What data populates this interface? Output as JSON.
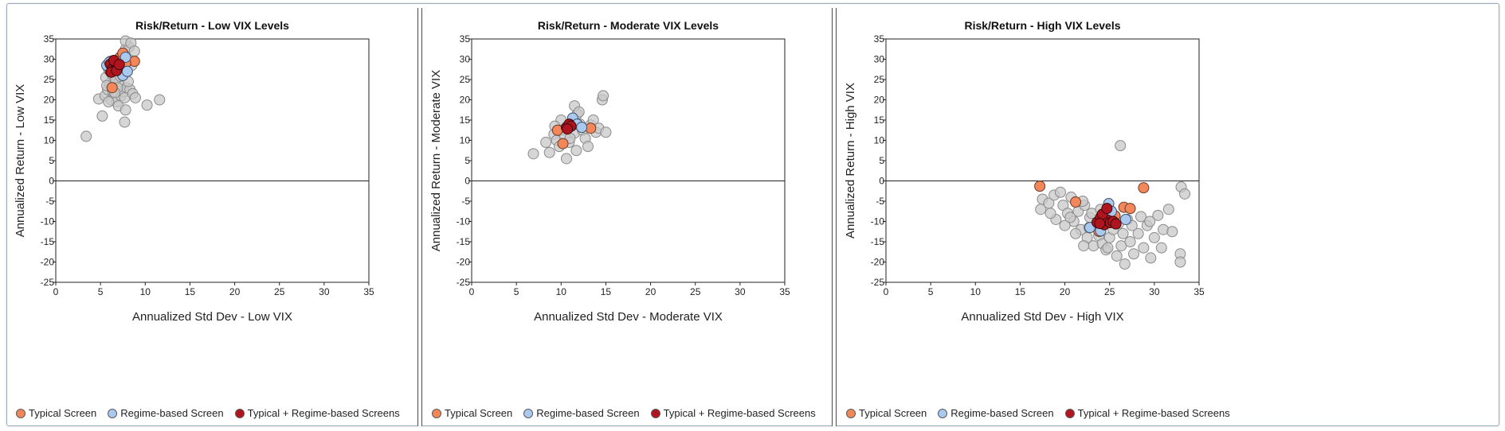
{
  "colors": {
    "background_points": "#c8c8c8",
    "typical": "#f2875a",
    "regime": "#a9c9ef",
    "combined": "#b0141f"
  },
  "chart_data": [
    {
      "type": "scatter",
      "title": "Risk/Return - Low VIX Levels",
      "xlabel": "Annualized Std Dev - Low VIX",
      "ylabel": "Annualized Return - Low VIX",
      "xlim": [
        0,
        35
      ],
      "ylim": [
        -25,
        35
      ],
      "xticks": [
        0,
        5,
        10,
        15,
        20,
        25,
        30,
        35
      ],
      "yticks": [
        35,
        30,
        25,
        20,
        15,
        10,
        5,
        0,
        -5,
        -10,
        -15,
        -20,
        -25
      ],
      "grid": false,
      "legend": [
        "Typical Screen",
        "Regime-based Screen",
        "Typical + Regime-based Screens"
      ],
      "series": [
        {
          "role": "background",
          "points": [
            [
              3.4,
              11.0
            ],
            [
              5.2,
              16.0
            ],
            [
              4.8,
              20.2
            ],
            [
              5.5,
              21.0
            ],
            [
              5.8,
              22.5
            ],
            [
              6.0,
              24.0
            ],
            [
              5.6,
              25.5
            ],
            [
              6.3,
              26.2
            ],
            [
              5.9,
              27.5
            ],
            [
              6.5,
              28.0
            ],
            [
              7.0,
              29.0
            ],
            [
              7.2,
              30.5
            ],
            [
              7.5,
              31.0
            ],
            [
              7.8,
              32.5
            ],
            [
              8.2,
              33.0
            ],
            [
              7.8,
              34.5
            ],
            [
              8.4,
              34.0
            ],
            [
              8.8,
              32.0
            ],
            [
              6.2,
              20.0
            ],
            [
              6.8,
              19.5
            ],
            [
              7.3,
              21.0
            ],
            [
              7.6,
              22.0
            ],
            [
              7.9,
              23.0
            ],
            [
              8.3,
              22.5
            ],
            [
              7.1,
              24.5
            ],
            [
              6.7,
              25.0
            ],
            [
              7.4,
              26.5
            ],
            [
              8.0,
              27.0
            ],
            [
              8.5,
              28.5
            ],
            [
              6.1,
              29.5
            ],
            [
              5.7,
              23.5
            ],
            [
              6.9,
              23.0
            ],
            [
              7.7,
              20.5
            ],
            [
              8.6,
              21.5
            ],
            [
              7.0,
              18.5
            ],
            [
              7.7,
              14.5
            ],
            [
              7.8,
              17.5
            ],
            [
              8.9,
              20.5
            ],
            [
              10.2,
              18.7
            ],
            [
              11.6,
              20.0
            ],
            [
              6.4,
              22.0
            ],
            [
              5.9,
              19.5
            ],
            [
              6.6,
              21.8
            ],
            [
              7.2,
              25.8
            ],
            [
              8.1,
              24.5
            ]
          ]
        },
        {
          "name": "Typical Screen",
          "points": [
            [
              6.3,
              23.0
            ],
            [
              8.8,
              29.5
            ],
            [
              7.2,
              30.5
            ],
            [
              6.9,
              28.5
            ],
            [
              7.8,
              29.0
            ],
            [
              6.1,
              27.0
            ],
            [
              7.5,
              31.5
            ]
          ]
        },
        {
          "name": "Regime-based Screen",
          "points": [
            [
              5.7,
              28.5
            ],
            [
              6.0,
              29.3
            ],
            [
              7.0,
              27.5
            ],
            [
              7.5,
              26.0
            ],
            [
              8.0,
              27.0
            ],
            [
              7.8,
              30.5
            ],
            [
              6.5,
              27.8
            ]
          ]
        },
        {
          "name": "Typical + Regime-based Screens",
          "points": [
            [
              6.1,
              28.8
            ],
            [
              6.3,
              27.5
            ],
            [
              6.7,
              29.0
            ],
            [
              6.9,
              28.0
            ],
            [
              6.2,
              26.8
            ],
            [
              6.5,
              29.7
            ],
            [
              6.8,
              27.2
            ],
            [
              7.1,
              28.7
            ]
          ]
        }
      ]
    },
    {
      "type": "scatter",
      "title": "Risk/Return - Moderate VIX Levels",
      "xlabel": "Annualized Std Dev - Moderate VIX",
      "ylabel": "Annualized Return - Moderate VIX",
      "xlim": [
        0,
        35
      ],
      "ylim": [
        -25,
        35
      ],
      "xticks": [
        0,
        5,
        10,
        15,
        20,
        25,
        30,
        35
      ],
      "yticks": [
        35,
        30,
        25,
        20,
        15,
        10,
        5,
        0,
        -5,
        -10,
        -15,
        -20,
        -25
      ],
      "grid": false,
      "legend": [
        "Typical Screen",
        "Regime-based Screen",
        "Typical + Regime-based Screens"
      ],
      "series": [
        {
          "role": "background",
          "points": [
            [
              6.9,
              6.7
            ],
            [
              8.3,
              9.5
            ],
            [
              8.7,
              7.0
            ],
            [
              9.2,
              11.5
            ],
            [
              9.5,
              10.0
            ],
            [
              9.8,
              8.5
            ],
            [
              10.1,
              12.5
            ],
            [
              10.4,
              11.0
            ],
            [
              10.6,
              5.5
            ],
            [
              10.9,
              9.5
            ],
            [
              11.2,
              13.5
            ],
            [
              11.5,
              11.8
            ],
            [
              11.8,
              16.5
            ],
            [
              12.1,
              14.0
            ],
            [
              12.4,
              12.5
            ],
            [
              12.7,
              10.5
            ],
            [
              13.0,
              8.5
            ],
            [
              13.3,
              13.8
            ],
            [
              13.6,
              15.0
            ],
            [
              13.9,
              12.0
            ],
            [
              14.2,
              13.0
            ],
            [
              14.6,
              20.0
            ],
            [
              14.7,
              21.0
            ],
            [
              15.0,
              12.0
            ],
            [
              11.5,
              18.5
            ],
            [
              12.0,
              17.0
            ],
            [
              11.0,
              10.5
            ],
            [
              10.0,
              15.0
            ],
            [
              9.3,
              13.5
            ],
            [
              11.7,
              7.5
            ]
          ]
        },
        {
          "name": "Typical Screen",
          "points": [
            [
              10.2,
              9.2
            ],
            [
              9.6,
              12.5
            ],
            [
              13.3,
              13.0
            ]
          ]
        },
        {
          "name": "Regime-based Screen",
          "points": [
            [
              11.3,
              15.5
            ],
            [
              11.8,
              14.0
            ],
            [
              10.8,
              13.0
            ],
            [
              12.3,
              13.2
            ]
          ]
        },
        {
          "name": "Typical + Regime-based Screens",
          "points": [
            [
              10.6,
              13.2
            ],
            [
              10.9,
              14.0
            ],
            [
              11.1,
              13.5
            ],
            [
              10.7,
              12.8
            ]
          ]
        }
      ]
    },
    {
      "type": "scatter",
      "title": "Risk/Return - High VIX Levels",
      "xlabel": "Annualized Std Dev - High VIX",
      "ylabel": "Annualized Return - High VIX",
      "xlim": [
        0,
        35
      ],
      "ylim": [
        -25,
        35
      ],
      "xticks": [
        0,
        5,
        10,
        15,
        20,
        25,
        30,
        35
      ],
      "yticks": [
        35,
        30,
        25,
        20,
        15,
        10,
        5,
        0,
        -5,
        -10,
        -15,
        -20,
        -25
      ],
      "grid": false,
      "legend": [
        "Typical Screen",
        "Regime-based Screen",
        "Typical + Regime-based Screens"
      ],
      "series": [
        {
          "role": "background",
          "points": [
            [
              26.2,
              8.7
            ],
            [
              17.5,
              -4.5
            ],
            [
              17.3,
              -7.0
            ],
            [
              18.2,
              -5.5
            ],
            [
              18.8,
              -3.5
            ],
            [
              19.5,
              -2.8
            ],
            [
              19.8,
              -6.0
            ],
            [
              20.3,
              -8.0
            ],
            [
              20.7,
              -4.0
            ],
            [
              21.0,
              -10.0
            ],
            [
              21.5,
              -7.5
            ],
            [
              21.8,
              -12.0
            ],
            [
              22.2,
              -6.0
            ],
            [
              22.5,
              -14.0
            ],
            [
              22.8,
              -9.0
            ],
            [
              23.2,
              -16.0
            ],
            [
              23.5,
              -11.0
            ],
            [
              23.8,
              -13.5
            ],
            [
              24.2,
              -15.5
            ],
            [
              24.6,
              -17.0
            ],
            [
              25.0,
              -14.0
            ],
            [
              25.4,
              -12.0
            ],
            [
              25.8,
              -18.5
            ],
            [
              26.3,
              -16.0
            ],
            [
              26.7,
              -20.5
            ],
            [
              27.3,
              -15.0
            ],
            [
              27.7,
              -18.0
            ],
            [
              28.2,
              -13.0
            ],
            [
              28.8,
              -16.5
            ],
            [
              29.2,
              -11.0
            ],
            [
              29.6,
              -19.0
            ],
            [
              30.0,
              -14.0
            ],
            [
              30.4,
              -8.5
            ],
            [
              31.0,
              -12.0
            ],
            [
              31.6,
              -7.0
            ],
            [
              32.0,
              -12.5
            ],
            [
              32.9,
              -18.0
            ],
            [
              32.9,
              -20.0
            ],
            [
              33.0,
              -1.5
            ],
            [
              33.4,
              -3.2
            ],
            [
              19.0,
              -9.5
            ],
            [
              20.0,
              -11.0
            ],
            [
              22.0,
              -5.0
            ],
            [
              23.0,
              -8.0
            ],
            [
              24.0,
              -7.0
            ],
            [
              25.0,
              -9.0
            ],
            [
              26.0,
              -10.5
            ],
            [
              27.0,
              -9.5
            ],
            [
              28.5,
              -8.8
            ],
            [
              29.5,
              -10.0
            ],
            [
              21.2,
              -13.0
            ],
            [
              22.7,
              -11.5
            ],
            [
              23.9,
              -12.5
            ],
            [
              26.5,
              -13.0
            ],
            [
              27.5,
              -11.0
            ],
            [
              30.8,
              -16.5
            ],
            [
              20.6,
              -9.0
            ],
            [
              18.4,
              -8.0
            ],
            [
              24.8,
              -16.5
            ],
            [
              22.1,
              -16.0
            ]
          ]
        },
        {
          "name": "Typical Screen",
          "points": [
            [
              17.2,
              -1.3
            ],
            [
              21.2,
              -5.2
            ],
            [
              26.6,
              -6.5
            ],
            [
              27.3,
              -6.8
            ],
            [
              28.8,
              -1.7
            ],
            [
              23.5,
              -11.0
            ],
            [
              24.2,
              -9.5
            ],
            [
              25.6,
              -8.6
            ],
            [
              23.8,
              -12.4
            ]
          ]
        },
        {
          "name": "Regime-based Screen",
          "points": [
            [
              24.9,
              -5.6
            ],
            [
              26.8,
              -9.5
            ],
            [
              24.0,
              -12.3
            ],
            [
              22.8,
              -11.5
            ],
            [
              25.2,
              -7.5
            ]
          ]
        },
        {
          "name": "Typical + Regime-based Screens",
          "points": [
            [
              23.6,
              -10.2
            ],
            [
              24.0,
              -9.0
            ],
            [
              24.4,
              -10.8
            ],
            [
              24.8,
              -9.7
            ],
            [
              25.1,
              -10.3
            ],
            [
              25.4,
              -10.0
            ],
            [
              24.2,
              -8.2
            ],
            [
              24.7,
              -6.8
            ],
            [
              25.7,
              -10.6
            ],
            [
              23.9,
              -10.5
            ]
          ]
        }
      ]
    }
  ]
}
